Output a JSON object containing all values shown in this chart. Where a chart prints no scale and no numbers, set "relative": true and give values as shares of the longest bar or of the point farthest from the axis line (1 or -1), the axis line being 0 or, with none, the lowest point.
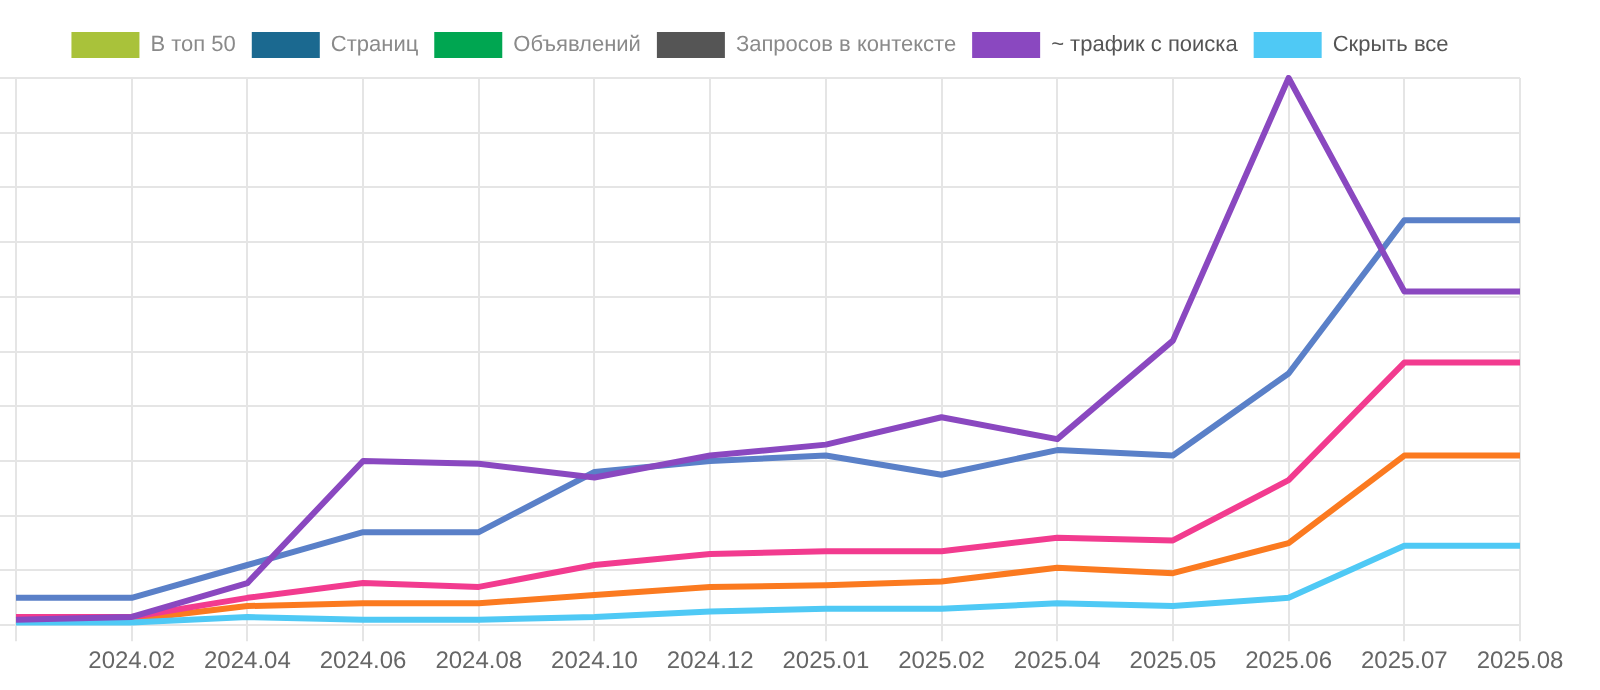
{
  "chart_data": {
    "type": "line",
    "relative": true,
    "grid": true,
    "legend": "top",
    "marker": "none",
    "line_style": "solid",
    "categories": [
      null,
      "2024.02",
      "2024.04",
      "2024.06",
      "2024.08",
      "2024.10",
      "2024.12",
      "2025.01",
      "2025.02",
      "2025.04",
      "2025.05",
      "2025.06",
      "2025.07",
      "2025.08"
    ],
    "series": [
      {
        "name": "В топ 50",
        "color": "#a9c23a",
        "values": [
          null,
          null,
          null,
          null,
          null,
          null,
          null,
          null,
          null,
          null,
          null,
          null,
          null,
          null
        ]
      },
      {
        "name": "Страниц",
        "color": "#1b6990",
        "values": [
          null,
          null,
          null,
          null,
          null,
          null,
          null,
          null,
          null,
          null,
          null,
          null,
          null,
          null
        ]
      },
      {
        "name": "Объявлений",
        "color": "#00a651",
        "values": [
          null,
          null,
          null,
          null,
          null,
          null,
          null,
          null,
          null,
          null,
          null,
          null,
          null,
          null
        ]
      },
      {
        "name": "Запросов в контексте",
        "color": "#555555",
        "values": [
          null,
          null,
          null,
          null,
          null,
          null,
          null,
          null,
          null,
          null,
          null,
          null,
          null,
          null
        ]
      },
      {
        "name": "~ трафик с поиска",
        "color": "#8a48c0",
        "values": [
          0.01,
          0.015,
          0.077,
          0.3,
          0.295,
          0.27,
          0.31,
          0.33,
          0.38,
          0.34,
          0.52,
          1,
          0.61,
          0.61
        ]
      },
      {
        "name": "Скрыть все",
        "color": "#4fc9f5",
        "values": [
          0.005,
          0.005,
          0.015,
          0.01,
          0.01,
          0.015,
          0.025,
          0.03,
          0.03,
          0.04,
          0.035,
          0.05,
          0.145,
          0.145
        ]
      },
      {
        "color": "#5a80c8",
        "values": [
          0.05,
          0.05,
          0.11,
          0.17,
          0.17,
          0.28,
          0.3,
          0.31,
          0.275,
          0.32,
          0.31,
          0.46,
          0.74,
          0.74
        ]
      },
      {
        "color": "#f23b8f",
        "values": [
          0.015,
          0.015,
          0.05,
          0.077,
          0.07,
          0.11,
          0.13,
          0.135,
          0.135,
          0.16,
          0.155,
          0.265,
          0.48,
          0.48
        ]
      },
      {
        "color": "#fb7a20",
        "values": [
          0.01,
          0.01,
          0.035,
          0.04,
          0.04,
          0.055,
          0.07,
          0.073,
          0.08,
          0.105,
          0.095,
          0.15,
          0.31,
          0.31
        ]
      }
    ]
  }
}
